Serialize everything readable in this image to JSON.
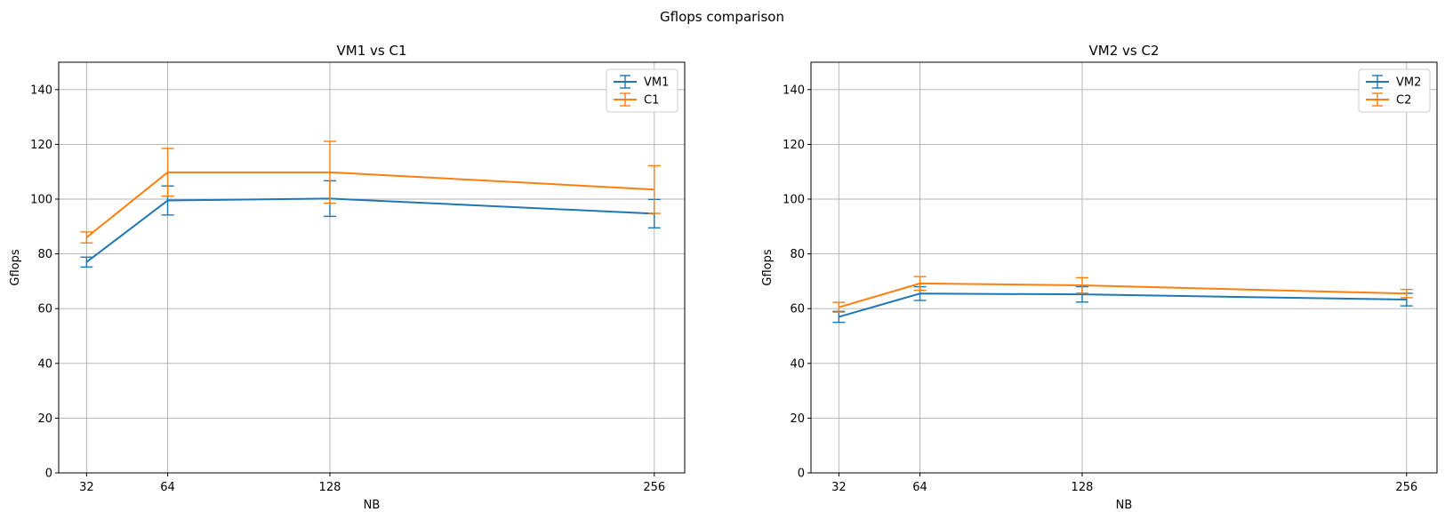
{
  "figure": {
    "suptitle": "Gflops comparison"
  },
  "chart_data": [
    {
      "type": "line",
      "title": "VM1 vs C1",
      "xlabel": "NB",
      "ylabel": "Gflops",
      "x": [
        32,
        64,
        128,
        256
      ],
      "x_tick_labels": [
        "32",
        "64",
        "128",
        "256"
      ],
      "xlim": [
        21,
        268
      ],
      "ylim": [
        0,
        150
      ],
      "y_ticks": [
        0,
        20,
        40,
        60,
        80,
        100,
        120,
        140
      ],
      "grid": true,
      "error_bars": true,
      "legend_position": "upper right",
      "series": [
        {
          "name": "VM1",
          "color": "#1f77b4",
          "values": [
            77,
            99.5,
            100.2,
            94.7
          ],
          "errors": [
            1.8,
            5.3,
            6.5,
            5.2
          ]
        },
        {
          "name": "C1",
          "color": "#ff7f0e",
          "values": [
            86,
            109.8,
            109.8,
            103.5
          ],
          "errors": [
            2.0,
            8.7,
            11.3,
            8.7
          ]
        }
      ]
    },
    {
      "type": "line",
      "title": "VM2 vs C2",
      "xlabel": "NB",
      "ylabel": "Gflops",
      "x": [
        32,
        64,
        128,
        256
      ],
      "x_tick_labels": [
        "32",
        "64",
        "128",
        "256"
      ],
      "xlim": [
        21,
        268
      ],
      "ylim": [
        0,
        150
      ],
      "y_ticks": [
        0,
        20,
        40,
        60,
        80,
        100,
        120,
        140
      ],
      "grid": true,
      "error_bars": true,
      "legend_position": "upper right",
      "series": [
        {
          "name": "VM2",
          "color": "#1f77b4",
          "values": [
            57,
            65.5,
            65.2,
            63.3
          ],
          "errors": [
            2.0,
            2.5,
            2.8,
            2.3
          ]
        },
        {
          "name": "C2",
          "color": "#ff7f0e",
          "values": [
            60.5,
            69.2,
            68.5,
            65.5
          ],
          "errors": [
            1.8,
            2.5,
            2.8,
            1.5
          ]
        }
      ]
    }
  ]
}
